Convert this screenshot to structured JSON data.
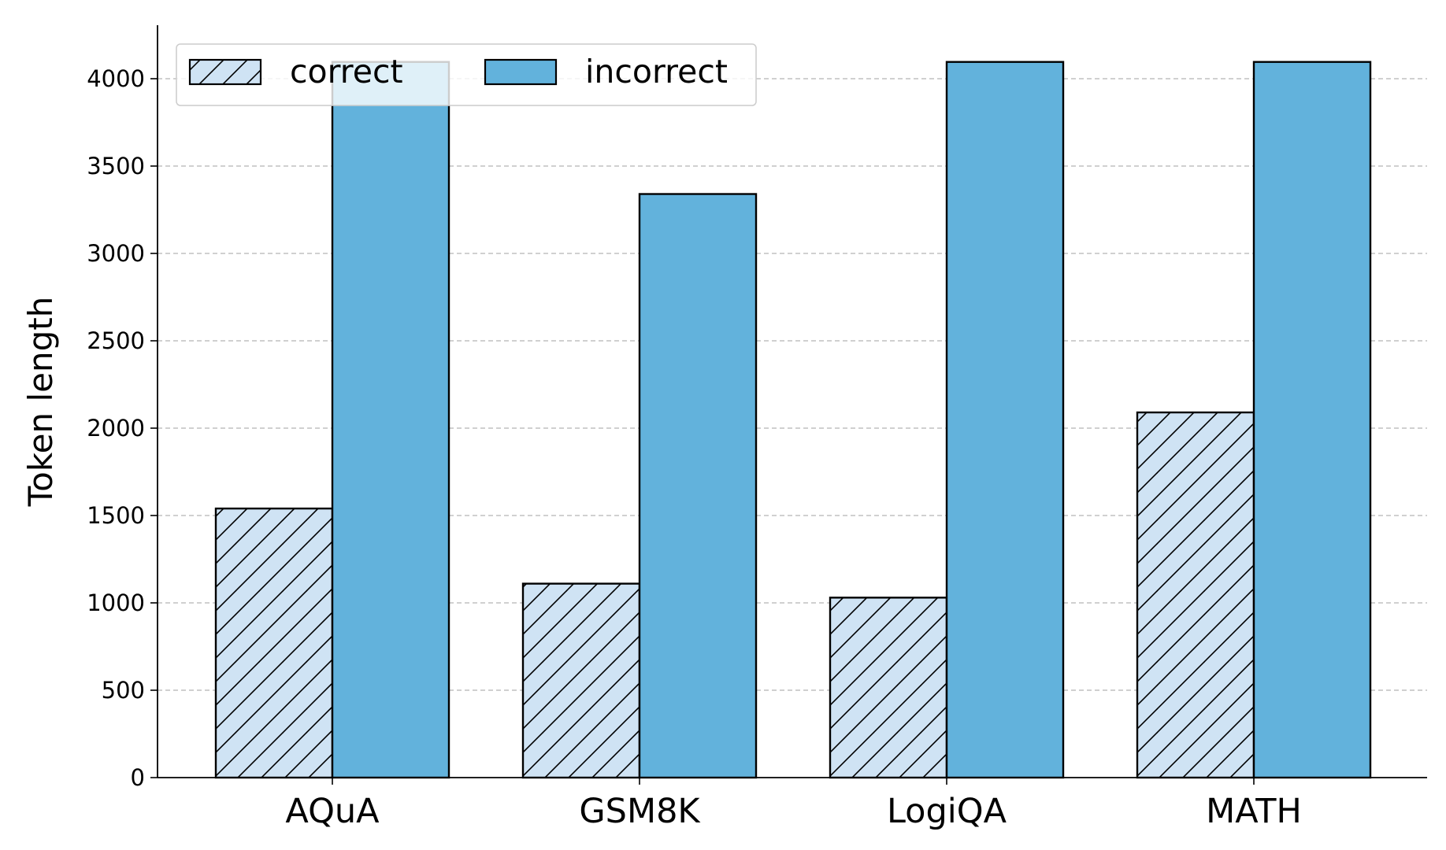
{
  "chart_data": {
    "type": "bar",
    "categories": [
      "AQuA",
      "GSM8K",
      "LogiQA",
      "MATH"
    ],
    "series": [
      {
        "name": "correct",
        "values": [
          1540,
          1110,
          1030,
          2090
        ],
        "color": "#cfe3f4",
        "hatch": "diagonal"
      },
      {
        "name": "incorrect",
        "values": [
          4096,
          3340,
          4096,
          4096
        ],
        "color": "#62b2dc",
        "hatch": "none"
      }
    ],
    "title": "",
    "xlabel": "",
    "ylabel": "Token length",
    "ylim": [
      0,
      4300
    ],
    "yticks": [
      0,
      500,
      1000,
      1500,
      2000,
      2500,
      3000,
      3500,
      4000
    ],
    "grid": "y-dashed",
    "legend": {
      "placement": "top-left",
      "columns": 2
    }
  }
}
